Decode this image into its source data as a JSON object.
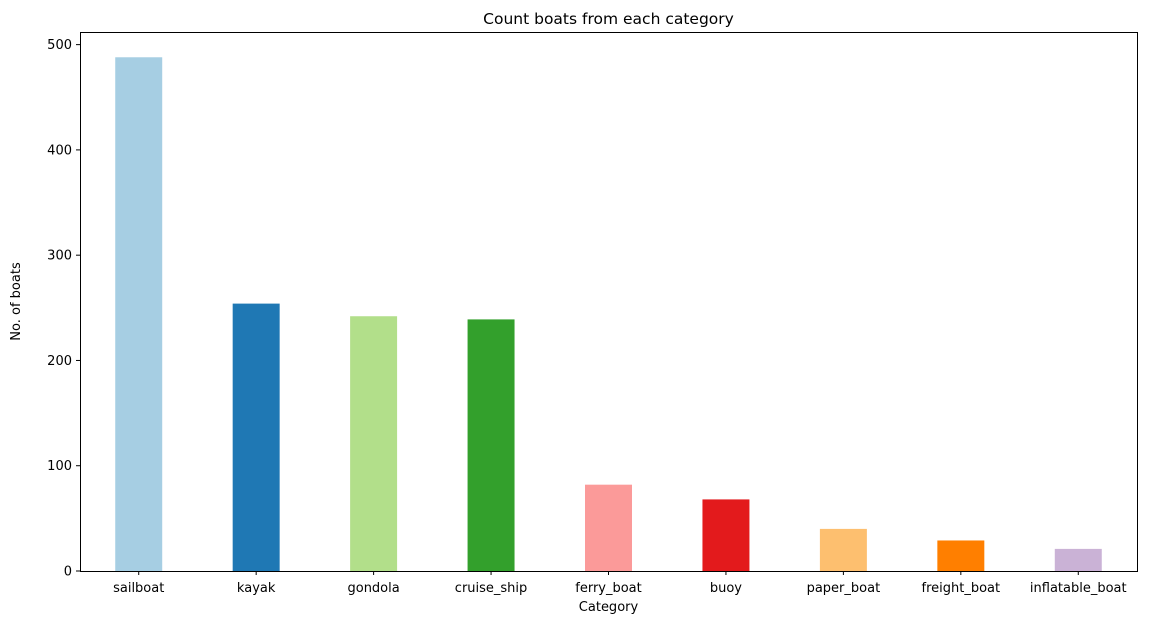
{
  "chart_data": {
    "type": "bar",
    "title": "Count boats from each category",
    "xlabel": "Category",
    "ylabel": "No. of boats",
    "categories": [
      "sailboat",
      "kayak",
      "gondola",
      "cruise_ship",
      "ferry_boat",
      "buoy",
      "paper_boat",
      "freight_boat",
      "inflatable_boat"
    ],
    "values": [
      488,
      254,
      242,
      239,
      82,
      68,
      40,
      29,
      21
    ],
    "colors": [
      "#a6cee3",
      "#1f78b4",
      "#b2df8a",
      "#33a02c",
      "#fb9a99",
      "#e31a1c",
      "#fdbf6f",
      "#ff7f00",
      "#cab2d6"
    ],
    "ylim": [
      0,
      512
    ],
    "yticks": [
      0,
      100,
      200,
      300,
      400,
      500
    ],
    "grid": false,
    "legend": "none"
  }
}
